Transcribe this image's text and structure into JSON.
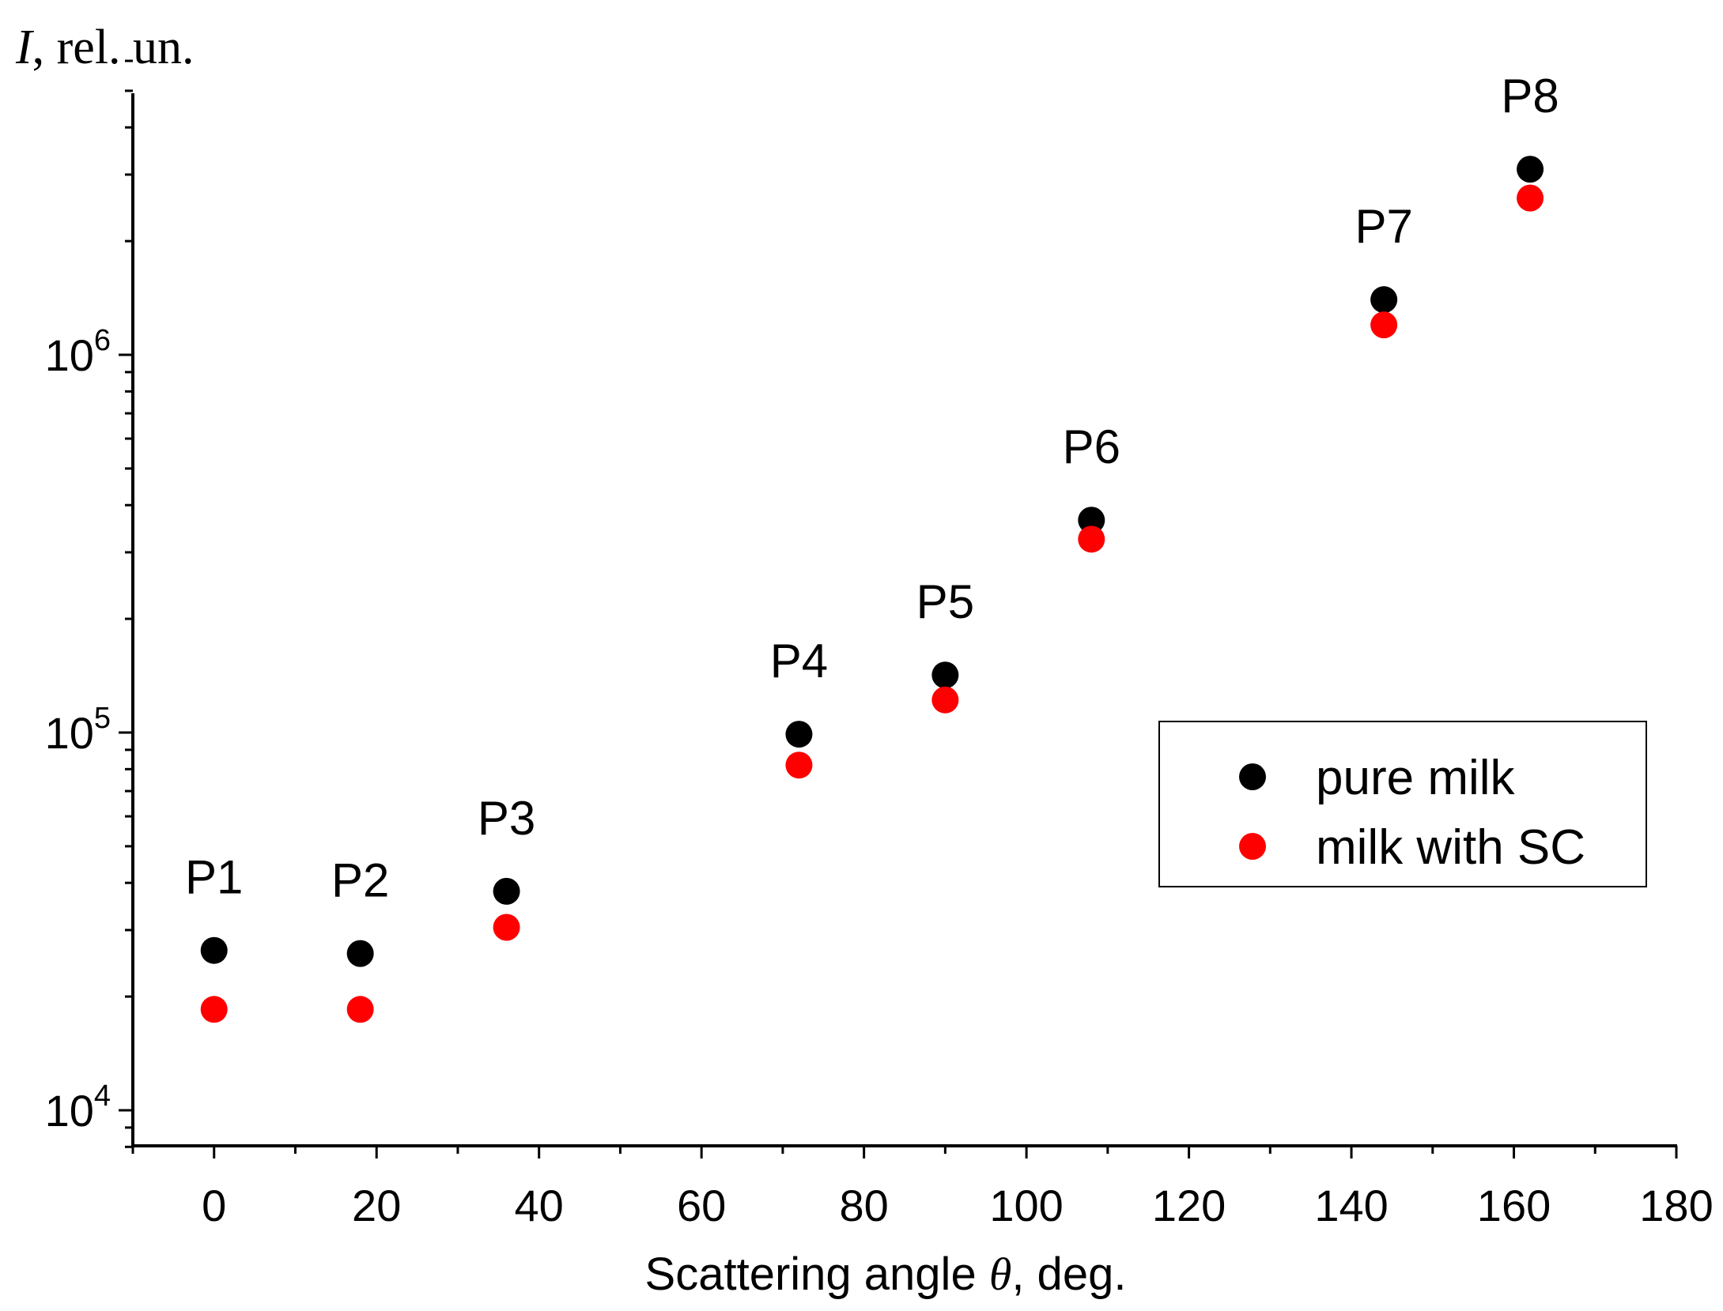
{
  "chart_data": {
    "type": "scatter",
    "title": "",
    "xlabel": "Scattering angle θ, deg.",
    "xlabel_parts": {
      "before": "Scattering angle ",
      "symbol": "θ",
      "after": ", deg."
    },
    "ylabel": "I, rel. un.",
    "ylabel_parts": {
      "symbol": "I",
      "after": ", rel. un."
    },
    "xlim": [
      -10,
      180
    ],
    "ylim": [
      8000,
      6000000
    ],
    "yscale": "log",
    "x_ticks": [
      0,
      20,
      40,
      60,
      80,
      100,
      120,
      140,
      160,
      180
    ],
    "x_tick_labels": [
      "0",
      "20",
      "40",
      "60",
      "80",
      "100",
      "120",
      "140",
      "160",
      "180"
    ],
    "y_ticks": [
      10000,
      100000,
      1000000
    ],
    "y_tick_labels": [
      {
        "base": "10",
        "exp": "4"
      },
      {
        "base": "10",
        "exp": "5"
      },
      {
        "base": "10",
        "exp": "6"
      }
    ],
    "point_labels": [
      "P1",
      "P2",
      "P3",
      "P4",
      "P5",
      "P6",
      "P7",
      "P8"
    ],
    "x": [
      0,
      18,
      36,
      72,
      90,
      108,
      144,
      162
    ],
    "series": [
      {
        "name": "pure milk",
        "color": "#000000",
        "values": [
          26500,
          26000,
          38000,
          99000,
          142000,
          365000,
          1400000,
          3100000
        ]
      },
      {
        "name": "milk with SC",
        "color": "#ff0000",
        "values": [
          18500,
          18500,
          30500,
          82000,
          122000,
          325000,
          1200000,
          2600000
        ]
      }
    ],
    "legend_position": "right"
  }
}
